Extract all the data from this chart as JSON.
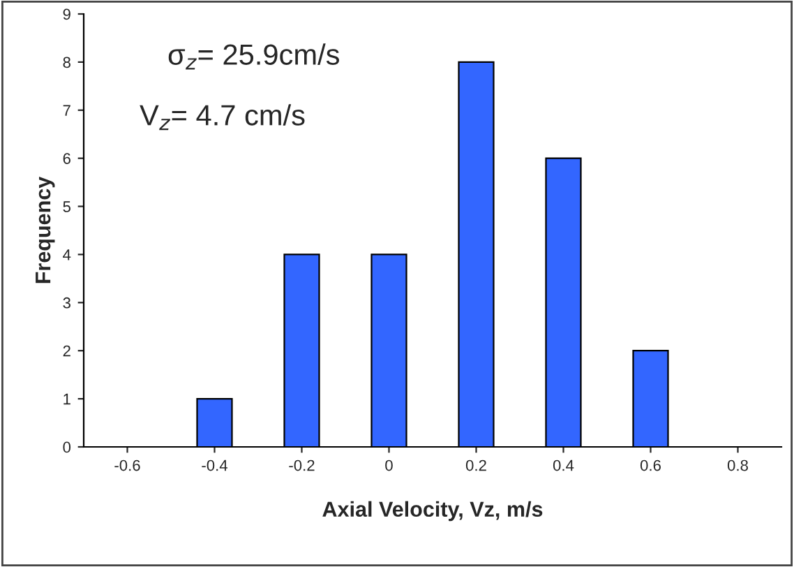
{
  "chart_data": {
    "type": "bar",
    "categories": [
      "-0.6",
      "-0.4",
      "-0.2",
      "0",
      "0.2",
      "0.4",
      "0.6",
      "0.8"
    ],
    "values": [
      0,
      1,
      4,
      4,
      8,
      6,
      2,
      0
    ],
    "color": "#3366ff",
    "xlabel": "Axial Velocity, Vz, m/s",
    "ylabel": "Frequency",
    "ylim": [
      0,
      9
    ],
    "yticks": [
      0,
      1,
      2,
      3,
      4,
      5,
      6,
      7,
      8,
      9
    ],
    "grid": false,
    "legend": false,
    "annotations": [
      "σ$_{z}$= 25.9cm/s",
      "V$_{z}$= 4.7 cm/s"
    ]
  }
}
